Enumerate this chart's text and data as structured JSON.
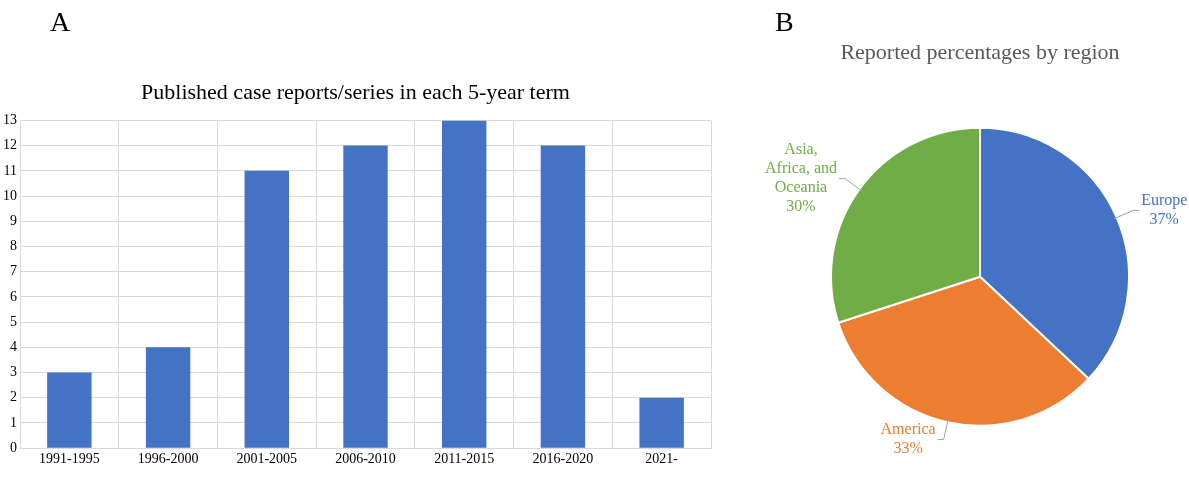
{
  "chart_data": [
    {
      "type": "bar",
      "title": "Published case reports/series in each 5-year term",
      "annotations": [
        "A"
      ],
      "categories": [
        "1991-1995",
        "1996-2000",
        "2001-2005",
        "2006-2010",
        "2011-2015",
        "2016-2020",
        "2021-"
      ],
      "values": [
        3,
        4,
        11,
        12,
        13,
        12,
        2
      ],
      "color": "#4472c4",
      "ylim": [
        0,
        13
      ],
      "yticks": [
        0,
        1,
        2,
        3,
        4,
        5,
        6,
        7,
        8,
        9,
        10,
        11,
        12,
        13
      ],
      "grid": true
    },
    {
      "type": "pie",
      "title": "Reported percentages by region",
      "annotations": [
        "B"
      ],
      "categories": [
        "Europe",
        "America",
        "Asia, Africa, and Oceania"
      ],
      "values": [
        37,
        33,
        30
      ],
      "colors": [
        "#4472c4",
        "#ed7d31",
        "#70ad47"
      ],
      "value_labels": [
        "37%",
        "33%",
        "30%"
      ]
    }
  ]
}
